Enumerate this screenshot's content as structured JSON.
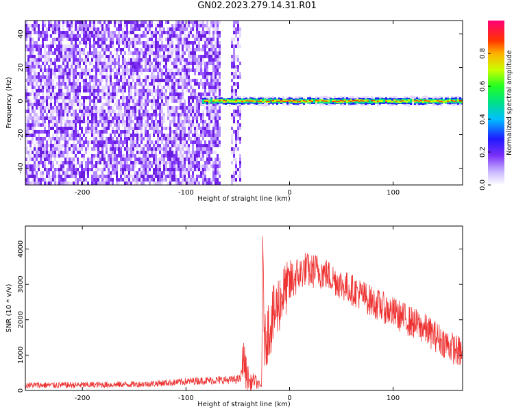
{
  "title": "GN02.2023.279.14.31.R01",
  "chart_data": [
    {
      "type": "heatmap",
      "xlabel": "Height of straight line (km)",
      "ylabel": "Frequency (Hz)",
      "xlim": [
        -255,
        167
      ],
      "ylim": [
        -50,
        48
      ],
      "xticks": [
        -200,
        -100,
        0,
        100
      ],
      "xtick_labels": [
        "-200",
        "-100",
        "0",
        "100"
      ],
      "yticks": [
        -40,
        -20,
        0,
        20,
        40
      ],
      "ytick_labels": [
        "-40",
        "-20",
        "0",
        "20",
        "40"
      ],
      "colorbar": {
        "label": "Normalized spectral amplitude",
        "range": [
          0,
          1
        ],
        "ticks": [
          0,
          0.2,
          0.4,
          0.6,
          0.8
        ],
        "tick_labels": [
          "0.0",
          "0.2",
          "0.4",
          "0.6",
          "0.8"
        ],
        "colormap": "white-purple-blue-cyan-green-yellow-red-magenta"
      },
      "features": {
        "noise_region_x": [
          -255,
          -68
        ],
        "noise_band_x": [
          -57,
          -48
        ],
        "signal_line_freq_hz": 0,
        "signal_line_x": [
          -85,
          167
        ]
      }
    },
    {
      "type": "line",
      "xlabel": "Height of straight line (km)",
      "ylabel": "SNR (10 * v/v)",
      "xlim": [
        -255,
        167
      ],
      "ylim": [
        0,
        4650
      ],
      "xticks": [
        -200,
        -100,
        0,
        100
      ],
      "xtick_labels": [
        "-200",
        "-100",
        "0",
        "100"
      ],
      "yticks": [
        0,
        1000,
        2000,
        3000,
        4000
      ],
      "ytick_labels": [
        "0",
        "1000",
        "2000",
        "3000",
        "4000"
      ],
      "grid": false,
      "series": [
        {
          "color": "#ee3333",
          "x": [
            -255,
            -230,
            -200,
            -170,
            -140,
            -110,
            -90,
            -70,
            -55,
            -47,
            -45,
            -42,
            -38,
            -34,
            -30,
            -27,
            -26,
            -24,
            -20,
            -15,
            -10,
            -5,
            0,
            5,
            10,
            15,
            20,
            25,
            30,
            35,
            40,
            45,
            50,
            60,
            70,
            80,
            90,
            100,
            110,
            120,
            130,
            140,
            150,
            160,
            167
          ],
          "y": [
            150,
            150,
            155,
            165,
            180,
            230,
            270,
            290,
            300,
            320,
            1000,
            500,
            200,
            300,
            150,
            100,
            3800,
            1300,
            1800,
            2100,
            2500,
            2800,
            3000,
            3200,
            3300,
            3450,
            3350,
            3400,
            3350,
            3300,
            3200,
            3100,
            3000,
            2850,
            2700,
            2500,
            2350,
            2200,
            2050,
            1900,
            1750,
            1550,
            1350,
            1150,
            1050
          ],
          "noise_amplitude": [
            90,
            90,
            90,
            90,
            90,
            100,
            110,
            120,
            120,
            120,
            600,
            500,
            250,
            200,
            150,
            100,
            700,
            800,
            900,
            900,
            900,
            800,
            700,
            600,
            500,
            500,
            500,
            500,
            500,
            450,
            450,
            450,
            450,
            450,
            450,
            450,
            450,
            450,
            450,
            450,
            450,
            450,
            450,
            450,
            450
          ]
        }
      ]
    }
  ]
}
